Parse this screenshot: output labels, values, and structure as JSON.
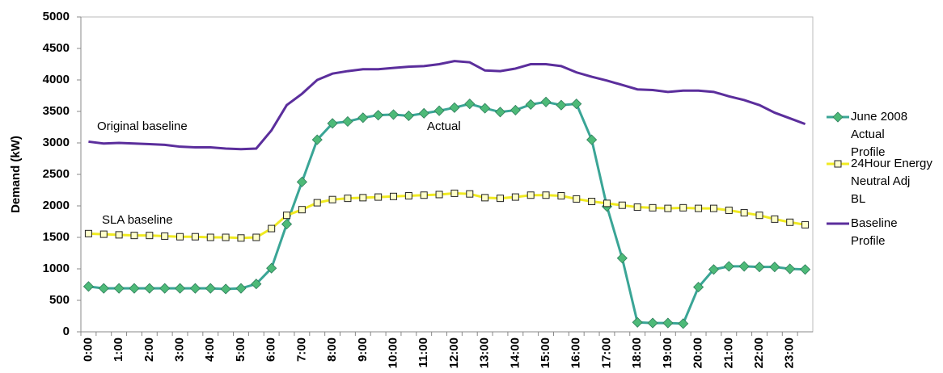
{
  "chart_data": {
    "type": "line",
    "y_label": "Demand (kW)",
    "categories": [
      "0:00",
      null,
      "1:00",
      null,
      "2:00",
      null,
      "3:00",
      null,
      "4:00",
      null,
      "5:00",
      null,
      "6:00",
      null,
      "7:00",
      null,
      "8:00",
      null,
      "9:00",
      null,
      "10:00",
      null,
      "11:00",
      null,
      "12:00",
      null,
      "13:00",
      null,
      "14:00",
      null,
      "15:00",
      null,
      "16:00",
      null,
      "17:00",
      null,
      "18:00",
      null,
      "19:00",
      null,
      "20:00",
      null,
      "21:00",
      null,
      "22:00",
      null,
      "23:00",
      null
    ],
    "ylim": [
      0,
      5000
    ],
    "yticks": [
      0,
      500,
      1000,
      1500,
      2000,
      2500,
      3000,
      3500,
      4000,
      4500,
      5000
    ],
    "legend": "right",
    "series": [
      {
        "name": "June 2008 Actual Profile",
        "color": "#3aa596",
        "marker": "diamond",
        "marker_color": "#4dba78",
        "values": [
          720,
          690,
          690,
          690,
          690,
          690,
          690,
          690,
          690,
          680,
          690,
          760,
          1010,
          1710,
          2380,
          3050,
          3310,
          3340,
          3400,
          3440,
          3450,
          3430,
          3470,
          3510,
          3560,
          3620,
          3550,
          3490,
          3520,
          3610,
          3650,
          3600,
          3620,
          3050,
          1990,
          1170,
          150,
          140,
          140,
          130,
          710,
          990,
          1040,
          1040,
          1030,
          1030,
          1000,
          990
        ]
      },
      {
        "name": "24Hour Energy Neutral Adj BL",
        "color": "#f0ea22",
        "marker": "square",
        "marker_color": "#ffffcc",
        "values": [
          1560,
          1550,
          1540,
          1530,
          1530,
          1520,
          1510,
          1510,
          1500,
          1500,
          1490,
          1500,
          1640,
          1850,
          1940,
          2050,
          2100,
          2120,
          2130,
          2140,
          2150,
          2160,
          2170,
          2180,
          2200,
          2190,
          2130,
          2120,
          2140,
          2170,
          2170,
          2160,
          2110,
          2070,
          2040,
          2010,
          1980,
          1970,
          1960,
          1970,
          1960,
          1960,
          1930,
          1890,
          1850,
          1790,
          1740,
          1700
        ]
      },
      {
        "name": "Baseline Profile",
        "color": "#5b2e9c",
        "marker": "none",
        "values": [
          3020,
          2990,
          3000,
          2990,
          2980,
          2970,
          2940,
          2930,
          2930,
          2910,
          2900,
          2910,
          3200,
          3600,
          3780,
          4000,
          4100,
          4140,
          4170,
          4170,
          4190,
          4210,
          4220,
          4250,
          4300,
          4280,
          4150,
          4140,
          4180,
          4250,
          4250,
          4220,
          4120,
          4050,
          3990,
          3920,
          3850,
          3840,
          3810,
          3830,
          3830,
          3810,
          3740,
          3680,
          3600,
          3480,
          3390,
          3300
        ]
      }
    ],
    "annotations": [
      {
        "text": "Original baseline"
      },
      {
        "text": "Actual"
      },
      {
        "text": "SLA baseline"
      }
    ]
  }
}
